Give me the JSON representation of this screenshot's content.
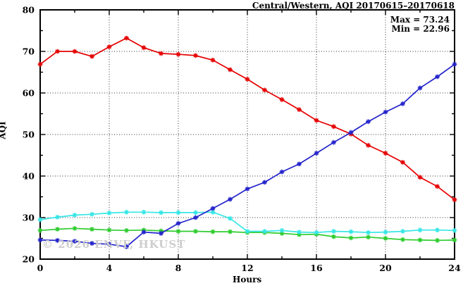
{
  "title": "Central/Western, AQI 20170615–20170618",
  "annotations": {
    "max_label": "Max = 73.24",
    "min_label": "Min = 22.96"
  },
  "watermark": "© 2026 ENVF, HKUST",
  "chart_data": {
    "type": "line",
    "title": "Central/Western, AQI 20170615–20170618",
    "xlabel": "Hours",
    "ylabel": "AQI",
    "xlim": [
      0,
      24
    ],
    "ylim": [
      20,
      80
    ],
    "x_major_ticks": [
      0,
      4,
      8,
      12,
      16,
      20,
      24
    ],
    "x_minor_step": 2,
    "y_major_ticks": [
      20,
      30,
      40,
      50,
      60,
      70,
      80
    ],
    "y_minor_step": 5,
    "grid": true,
    "legend": "none",
    "max_value": 73.24,
    "min_value": 22.96,
    "x": [
      0,
      1,
      2,
      3,
      4,
      5,
      6,
      7,
      8,
      9,
      10,
      11,
      12,
      13,
      14,
      15,
      16,
      17,
      18,
      19,
      20,
      21,
      22,
      23,
      24
    ],
    "series": [
      {
        "name": "red-series",
        "color": "#e60000",
        "values": [
          66.9,
          70.0,
          70.0,
          68.8,
          71.1,
          73.2,
          70.9,
          69.5,
          69.3,
          69.0,
          67.9,
          65.6,
          63.3,
          60.7,
          58.4,
          56.0,
          53.4,
          51.9,
          50.1,
          47.4,
          45.5,
          43.3,
          39.7,
          37.5,
          34.3
        ]
      },
      {
        "name": "green-series",
        "color": "#2ecc2e",
        "values": [
          26.9,
          27.2,
          27.4,
          27.2,
          27.0,
          26.9,
          27.0,
          26.8,
          26.7,
          26.7,
          26.6,
          26.6,
          26.4,
          26.4,
          26.2,
          25.9,
          26.0,
          25.4,
          25.1,
          25.3,
          25.0,
          24.7,
          24.6,
          24.5,
          24.6
        ]
      },
      {
        "name": "cyan-series",
        "color": "#35e6e6",
        "values": [
          29.5,
          30.1,
          30.6,
          30.8,
          31.1,
          31.3,
          31.3,
          31.2,
          31.2,
          31.2,
          31.3,
          29.8,
          26.7,
          26.7,
          26.9,
          26.5,
          26.4,
          26.7,
          26.6,
          26.4,
          26.5,
          26.7,
          27.0,
          27.0,
          26.9
        ]
      },
      {
        "name": "blue-series",
        "color": "#2424cc",
        "values": [
          24.6,
          24.5,
          24.3,
          23.8,
          23.6,
          23.0,
          26.5,
          26.2,
          28.6,
          30.0,
          32.2,
          34.4,
          36.9,
          38.5,
          41.0,
          42.9,
          45.5,
          48.1,
          50.5,
          53.1,
          55.4,
          57.4,
          61.2,
          63.9,
          66.9
        ]
      }
    ]
  }
}
